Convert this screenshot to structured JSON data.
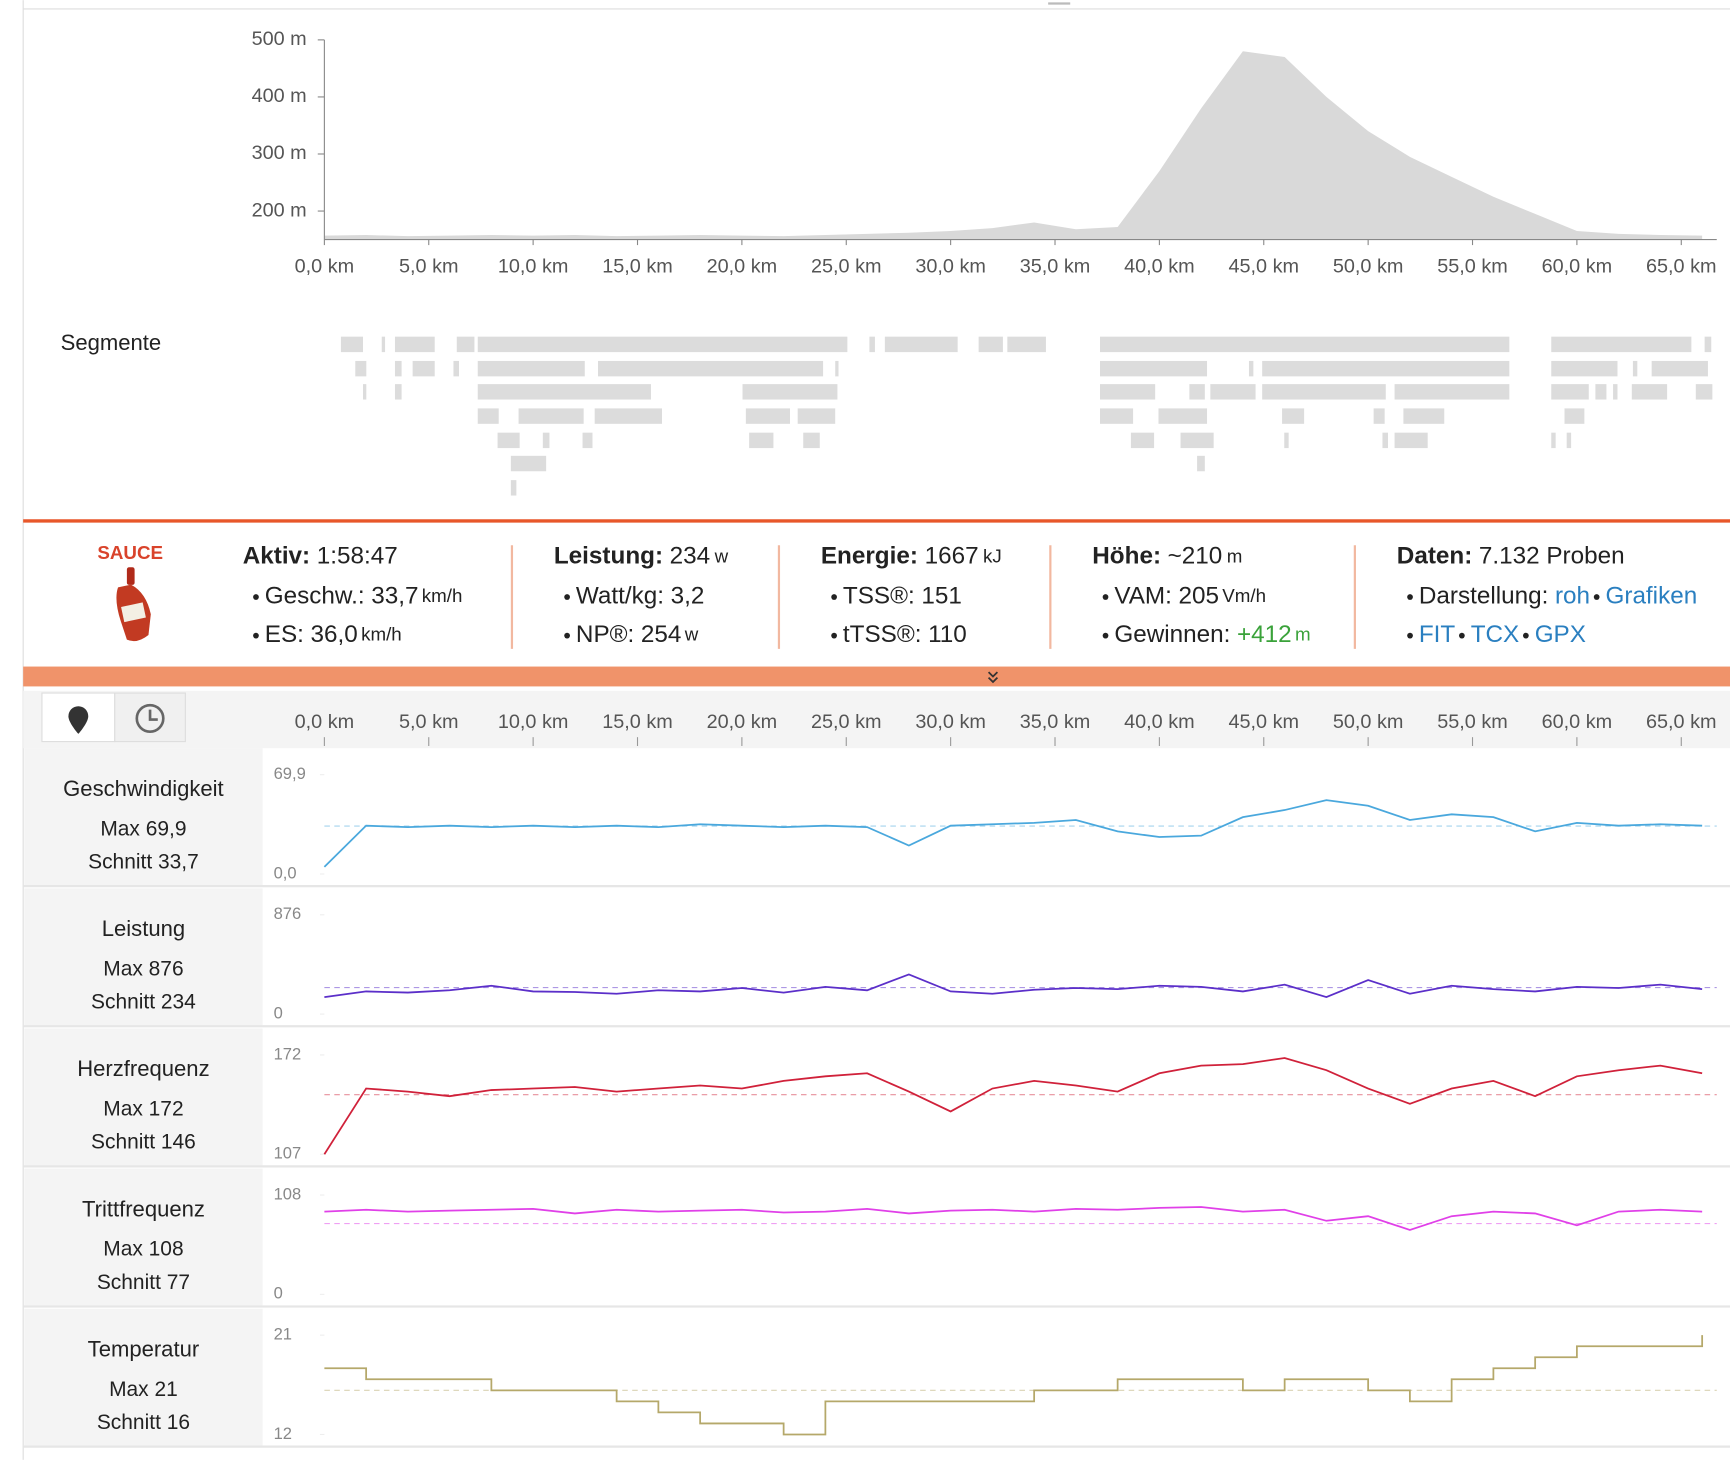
{
  "section_label": "Segmente",
  "logo": "SAUCE",
  "stats": [
    {
      "label": "Aktiv:",
      "value": "1:58:47",
      "items": [
        {
          "label": "Geschw.:",
          "value": "33,7",
          "unit": "km/h"
        },
        {
          "label": "ES:",
          "value": "36,0",
          "unit": "km/h"
        }
      ]
    },
    {
      "label": "Leistung:",
      "value": "234",
      "unit": "w",
      "items": [
        {
          "label": "Watt/kg:",
          "value": "3,2"
        },
        {
          "label": "NP®:",
          "value": "254",
          "unit": "w"
        }
      ]
    },
    {
      "label": "Energie:",
      "value": "1667",
      "unit": "kJ",
      "items": [
        {
          "label": "TSS®:",
          "value": "151"
        },
        {
          "label": "tTSS®:",
          "value": "110"
        }
      ]
    },
    {
      "label": "Höhe:",
      "value": "~210",
      "unit": "m",
      "items": [
        {
          "label": "VAM:",
          "value": "205",
          "unit": "Vm/h"
        },
        {
          "label": "Gewinnen:",
          "value": "+412",
          "unit": "m",
          "value_class": "green"
        }
      ]
    },
    {
      "label": "Daten:",
      "value": "7.132 Proben",
      "items": [
        {
          "label": "Darstellung:",
          "links": [
            "roh",
            "Grafiken"
          ]
        },
        {
          "links": [
            "FIT",
            "TCX",
            "GPX"
          ]
        }
      ]
    }
  ],
  "chart_data": [
    {
      "type": "area",
      "color": "#d9d9d9",
      "x": [
        0,
        2,
        4,
        6,
        8,
        10,
        12,
        14,
        16,
        18,
        20,
        22,
        24,
        26,
        28,
        30,
        32,
        34,
        36,
        38,
        40,
        42,
        44,
        46,
        48,
        50,
        52,
        54,
        56,
        58,
        60,
        62,
        64,
        66
      ],
      "values": [
        157,
        158,
        156,
        157,
        158,
        157,
        158,
        156,
        157,
        158,
        157,
        156,
        158,
        160,
        162,
        165,
        170,
        180,
        168,
        172,
        270,
        380,
        480,
        470,
        400,
        340,
        295,
        260,
        225,
        195,
        165,
        160,
        158,
        157
      ],
      "xlim": [
        0,
        66.7
      ],
      "ylim": [
        150,
        500
      ],
      "xticks": [
        {
          "value": 0,
          "label": "0,0 km"
        },
        {
          "value": 5,
          "label": "5,0 km"
        },
        {
          "value": 10,
          "label": "10,0 km"
        },
        {
          "value": 15,
          "label": "15,0 km"
        },
        {
          "value": 20,
          "label": "20,0 km"
        },
        {
          "value": 25,
          "label": "25,0 km"
        },
        {
          "value": 30,
          "label": "30,0 km"
        },
        {
          "value": 35,
          "label": "35,0 km"
        },
        {
          "value": 40,
          "label": "40,0 km"
        },
        {
          "value": 45,
          "label": "45,0 km"
        },
        {
          "value": 50,
          "label": "50,0 km"
        },
        {
          "value": 55,
          "label": "55,0 km"
        },
        {
          "value": 60,
          "label": "60,0 km"
        },
        {
          "value": 65,
          "label": "65,0 km"
        }
      ],
      "yticks": [
        {
          "value": 200,
          "label": "200 m"
        },
        {
          "value": 300,
          "label": "300 m"
        },
        {
          "value": 400,
          "label": "400 m"
        },
        {
          "value": 500,
          "label": "500 m"
        }
      ]
    },
    {
      "type": "line",
      "title": "Geschwindigkeit",
      "max_label": "Max 69,9",
      "avg_label": "Schnitt 33,7",
      "color": "#4aa8dd",
      "avg": 33.7,
      "x": [
        0,
        2,
        4,
        6,
        8,
        10,
        12,
        14,
        16,
        18,
        20,
        22,
        24,
        26,
        28,
        30,
        32,
        34,
        36,
        38,
        40,
        42,
        44,
        46,
        48,
        50,
        52,
        54,
        56,
        58,
        60,
        62,
        64,
        66
      ],
      "values": [
        5,
        34,
        33,
        34,
        33,
        34,
        33,
        34,
        33,
        35,
        34,
        33,
        34,
        33,
        20,
        34,
        35,
        36,
        38,
        30,
        26,
        27,
        40,
        45,
        52,
        48,
        38,
        42,
        40,
        30,
        36,
        34,
        35,
        34
      ],
      "xlim": [
        0,
        66.7
      ],
      "ylim": [
        0,
        69.9
      ],
      "yticks": [
        {
          "value": 0,
          "label": "0,0"
        },
        {
          "value": 69.9,
          "label": "69,9"
        }
      ],
      "xticks": [
        {
          "value": 0,
          "label": "0,0 km"
        },
        {
          "value": 5,
          "label": "5,0 km"
        },
        {
          "value": 10,
          "label": "10,0 km"
        },
        {
          "value": 15,
          "label": "15,0 km"
        },
        {
          "value": 20,
          "label": "20,0 km"
        },
        {
          "value": 25,
          "label": "25,0 km"
        },
        {
          "value": 30,
          "label": "30,0 km"
        },
        {
          "value": 35,
          "label": "35,0 km"
        },
        {
          "value": 40,
          "label": "40,0 km"
        },
        {
          "value": 45,
          "label": "45,0 km"
        },
        {
          "value": 50,
          "label": "50,0 km"
        },
        {
          "value": 55,
          "label": "55,0 km"
        },
        {
          "value": 60,
          "label": "60,0 km"
        },
        {
          "value": 65,
          "label": "65,0 km"
        }
      ]
    },
    {
      "type": "line",
      "title": "Leistung",
      "max_label": "Max 876",
      "avg_label": "Schnitt 234",
      "color": "#5b2fc9",
      "avg": 234,
      "x": [
        0,
        2,
        4,
        6,
        8,
        10,
        12,
        14,
        16,
        18,
        20,
        22,
        24,
        26,
        28,
        30,
        32,
        34,
        36,
        38,
        40,
        42,
        44,
        46,
        48,
        50,
        52,
        54,
        56,
        58,
        60,
        62,
        64,
        66
      ],
      "values": [
        150,
        200,
        190,
        210,
        250,
        200,
        195,
        180,
        210,
        200,
        230,
        190,
        240,
        210,
        350,
        200,
        180,
        215,
        230,
        220,
        250,
        240,
        200,
        260,
        150,
        300,
        180,
        250,
        220,
        200,
        240,
        230,
        260,
        220
      ],
      "xlim": [
        0,
        66.7
      ],
      "ylim": [
        0,
        876
      ],
      "yticks": [
        0,
        876
      ]
    },
    {
      "type": "line",
      "title": "Herzfrequenz",
      "max_label": "Max 172",
      "avg_label": "Schnitt 146",
      "color": "#d0213a",
      "avg": 146,
      "x": [
        0,
        2,
        4,
        6,
        8,
        10,
        12,
        14,
        16,
        18,
        20,
        22,
        24,
        26,
        28,
        30,
        32,
        34,
        36,
        38,
        40,
        42,
        44,
        46,
        48,
        50,
        52,
        54,
        56,
        58,
        60,
        62,
        64,
        66
      ],
      "values": [
        107,
        150,
        148,
        145,
        149,
        150,
        151,
        148,
        150,
        152,
        150,
        155,
        158,
        160,
        148,
        135,
        150,
        155,
        152,
        148,
        160,
        165,
        166,
        170,
        162,
        150,
        140,
        150,
        155,
        145,
        158,
        162,
        165,
        160
      ],
      "xlim": [
        0,
        66.7
      ],
      "ylim": [
        107,
        172
      ],
      "yticks": [
        107,
        172
      ]
    },
    {
      "type": "line",
      "title": "Trittfrequenz",
      "max_label": "Max 108",
      "avg_label": "Schnitt 77",
      "color": "#e040e8",
      "avg": 77,
      "x": [
        0,
        2,
        4,
        6,
        8,
        10,
        12,
        14,
        16,
        18,
        20,
        22,
        24,
        26,
        28,
        30,
        32,
        34,
        36,
        38,
        40,
        42,
        44,
        46,
        48,
        50,
        52,
        54,
        56,
        58,
        60,
        62,
        64,
        66
      ],
      "values": [
        90,
        92,
        90,
        91,
        92,
        93,
        88,
        92,
        90,
        91,
        92,
        89,
        90,
        93,
        88,
        91,
        92,
        90,
        93,
        92,
        94,
        95,
        90,
        92,
        80,
        85,
        70,
        85,
        90,
        88,
        75,
        90,
        92,
        90
      ],
      "xlim": [
        0,
        66.7
      ],
      "ylim": [
        0,
        108
      ],
      "yticks": [
        0,
        108
      ]
    },
    {
      "type": "step",
      "title": "Temperatur",
      "max_label": "Max 21",
      "avg_label": "Schnitt 16",
      "color": "#b5a86a",
      "avg": 16,
      "x": [
        0,
        2,
        4,
        6,
        8,
        10,
        12,
        14,
        16,
        18,
        20,
        22,
        24,
        26,
        28,
        30,
        32,
        34,
        36,
        38,
        40,
        42,
        44,
        46,
        48,
        50,
        52,
        54,
        56,
        58,
        60,
        62,
        64,
        66
      ],
      "values": [
        18,
        17,
        17,
        17,
        16,
        16,
        16,
        15,
        14,
        13,
        13,
        12,
        15,
        15,
        15,
        15,
        15,
        16,
        16,
        17,
        17,
        17,
        16,
        17,
        17,
        16,
        15,
        17,
        18,
        19,
        20,
        20,
        20,
        21
      ],
      "xlim": [
        0,
        66.7
      ],
      "ylim": [
        12,
        21
      ],
      "yticks": [
        12,
        21
      ]
    }
  ]
}
